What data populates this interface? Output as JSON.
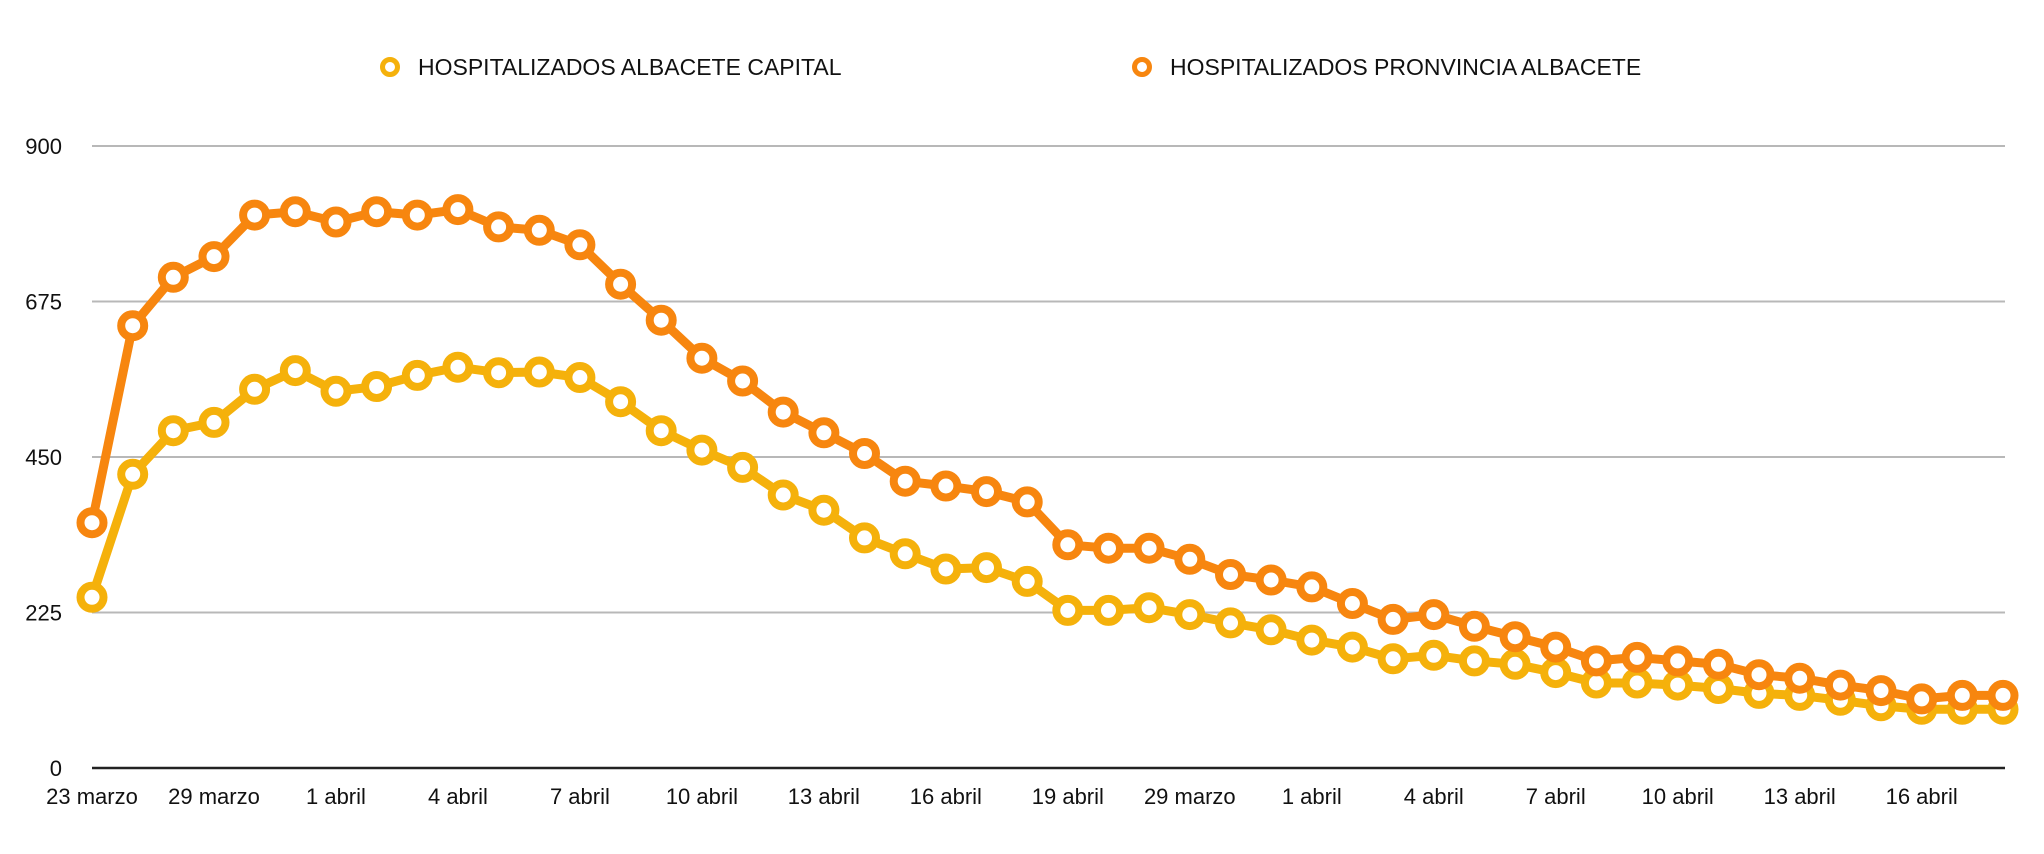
{
  "chart_data": {
    "type": "line",
    "title": "",
    "xlabel": "",
    "ylabel": "",
    "ylim": [
      0,
      900
    ],
    "y_ticks": [
      0,
      225,
      450,
      675,
      900
    ],
    "grid": true,
    "legend_position": "top",
    "x_tick_labels": [
      "23 marzo",
      "29 marzo",
      "1 abril",
      "4 abril",
      "7 abril",
      "10 abril",
      "13 abril",
      "16 abril",
      "19 abril",
      "29 marzo",
      "1 abril",
      "4 abril",
      "7 abril",
      "10 abril",
      "13 abril",
      "16 abril"
    ],
    "point_count": 48,
    "series": [
      {
        "name": "HOSPITALIZADOS ALBACETE CAPITAL",
        "color": "#F5B10B",
        "values": [
          247,
          425,
          488,
          500,
          548,
          575,
          545,
          552,
          568,
          580,
          572,
          573,
          565,
          530,
          488,
          460,
          435,
          395,
          373,
          333,
          310,
          288,
          290,
          270,
          228,
          228,
          232,
          222,
          210,
          200,
          185,
          175,
          158,
          163,
          155,
          150,
          138,
          123,
          123,
          120,
          115,
          108,
          105,
          98,
          90,
          85,
          85,
          85
        ]
      },
      {
        "name": "HOSPITALIZADOS PRONVINCIA ALBACETE",
        "color": "#F7860F",
        "values": [
          355,
          640,
          710,
          740,
          800,
          805,
          790,
          805,
          800,
          808,
          783,
          778,
          757,
          700,
          648,
          593,
          560,
          515,
          485,
          455,
          415,
          408,
          400,
          385,
          323,
          318,
          318,
          302,
          280,
          272,
          262,
          238,
          215,
          222,
          205,
          190,
          175,
          155,
          160,
          155,
          150,
          135,
          130,
          120,
          112,
          100,
          105,
          105
        ]
      }
    ]
  }
}
